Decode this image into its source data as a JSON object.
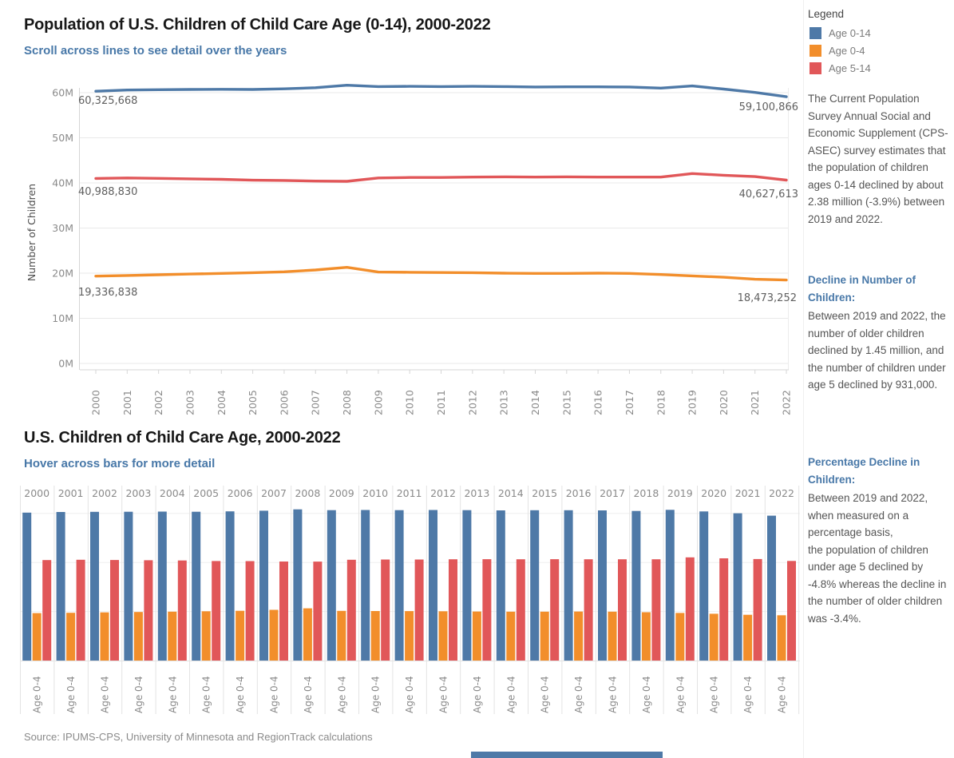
{
  "line_chart_section": {
    "title": "Population of U.S. Children of Child Care Age (0-14), 2000-2022",
    "subtitle": "Scroll across lines to see detail over the years",
    "y_axis_title": "Number of Children",
    "annotations": {
      "age014_start": "60,325,668",
      "age014_end": "59,100,866",
      "age514_start": "40,988,830",
      "age514_end": "40,627,613",
      "age04_start": "19,336,838",
      "age04_end": "18,473,252"
    }
  },
  "bar_chart_section": {
    "title": "U.S. Children of Child Care Age, 2000-2022",
    "subtitle": "Hover across bars for more detail"
  },
  "legend": {
    "title": "Legend",
    "items": [
      {
        "label": "Age 0-14",
        "color": "#4e79a7"
      },
      {
        "label": "Age 0-4",
        "color": "#f28e2b"
      },
      {
        "label": "Age 5-14",
        "color": "#e15759"
      }
    ]
  },
  "sidebar": {
    "intro": "The Current Population Survey Annual Social and Economic Supplement (CPS-ASEC) survey estimates that the population of children ages 0-14 declined by about 2.38 million (-3.9%) between 2019 and 2022.",
    "decline_heading": "Decline in Number of Children:",
    "decline_text": "Between 2019 and 2022, the number of older children declined by 1.45 million, and\nthe number of children under age 5 declined by 931,000.",
    "pct_heading": "Percentage Decline in Children:",
    "pct_text": "Between 2019 and 2022, when measured on a percentage basis,\nthe population of children under age 5 declined by -4.8% whereas the decline in the number of older children was -3.4%."
  },
  "source_note": "Source: IPUMS-CPS, University of Minnesota and RegionTrack calculations",
  "chart_data": [
    {
      "type": "line",
      "title": "Population of U.S. Children of Child Care Age (0-14), 2000-2022",
      "xlabel": "",
      "ylabel": "Number of Children",
      "ylim": [
        0,
        65000000
      ],
      "y_tick_labels": [
        "0M",
        "10M",
        "20M",
        "30M",
        "40M",
        "50M",
        "60M"
      ],
      "grid": "horizontal",
      "x": [
        2000,
        2001,
        2002,
        2003,
        2004,
        2005,
        2006,
        2007,
        2008,
        2009,
        2010,
        2011,
        2012,
        2013,
        2014,
        2015,
        2016,
        2017,
        2018,
        2019,
        2020,
        2021,
        2022
      ],
      "series": [
        {
          "name": "Age 0-14",
          "color": "#4e79a7",
          "values": [
            60325668,
            60580000,
            60650000,
            60700000,
            60750000,
            60700000,
            60850000,
            61100000,
            61650000,
            61350000,
            61400000,
            61350000,
            61400000,
            61350000,
            61250000,
            61300000,
            61300000,
            61250000,
            61000000,
            61482000,
            60800000,
            60050000,
            59100866
          ]
        },
        {
          "name": "Age 0-4",
          "color": "#f28e2b",
          "values": [
            19336838,
            19480000,
            19650000,
            19800000,
            19950000,
            20100000,
            20300000,
            20700000,
            21300000,
            20250000,
            20200000,
            20150000,
            20100000,
            20000000,
            19950000,
            19950000,
            20000000,
            19950000,
            19700000,
            19404000,
            19100000,
            18650000,
            18473252
          ]
        },
        {
          "name": "Age 5-14",
          "color": "#e15759",
          "values": [
            40988830,
            41100000,
            41000000,
            40900000,
            40800000,
            40600000,
            40550000,
            40400000,
            40350000,
            41100000,
            41200000,
            41200000,
            41300000,
            41350000,
            41300000,
            41350000,
            41300000,
            41300000,
            41300000,
            42078000,
            41700000,
            41400000,
            40627613
          ]
        }
      ]
    },
    {
      "type": "bar",
      "title": "U.S. Children of Child Care Age, 2000-2022",
      "bar_label": "Age 0-4",
      "ylim": [
        0,
        65000000
      ],
      "categories": [
        2000,
        2001,
        2002,
        2003,
        2004,
        2005,
        2006,
        2007,
        2008,
        2009,
        2010,
        2011,
        2012,
        2013,
        2014,
        2015,
        2016,
        2017,
        2018,
        2019,
        2020,
        2021,
        2022
      ],
      "series": [
        {
          "name": "Age 0-14",
          "color": "#4e79a7",
          "values": [
            60325668,
            60580000,
            60650000,
            60700000,
            60750000,
            60700000,
            60850000,
            61100000,
            61650000,
            61350000,
            61400000,
            61350000,
            61400000,
            61350000,
            61250000,
            61300000,
            61300000,
            61250000,
            61000000,
            61482000,
            60800000,
            60050000,
            59100866
          ]
        },
        {
          "name": "Age 0-4",
          "color": "#f28e2b",
          "values": [
            19336838,
            19480000,
            19650000,
            19800000,
            19950000,
            20100000,
            20300000,
            20700000,
            21300000,
            20250000,
            20200000,
            20150000,
            20100000,
            20000000,
            19950000,
            19950000,
            20000000,
            19950000,
            19700000,
            19404000,
            19100000,
            18650000,
            18473252
          ]
        },
        {
          "name": "Age 5-14",
          "color": "#e15759",
          "values": [
            40988830,
            41100000,
            41000000,
            40900000,
            40800000,
            40600000,
            40550000,
            40400000,
            40350000,
            41100000,
            41200000,
            41200000,
            41300000,
            41350000,
            41300000,
            41350000,
            41300000,
            41300000,
            41300000,
            42078000,
            41700000,
            41400000,
            40627613
          ]
        }
      ]
    }
  ]
}
